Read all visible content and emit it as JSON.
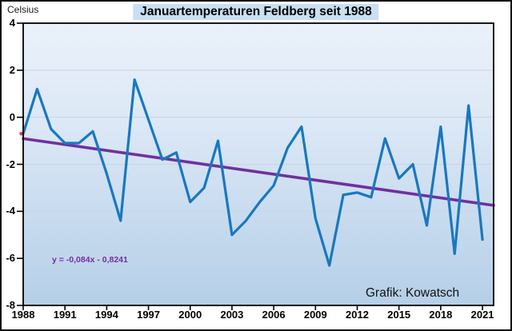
{
  "chart": {
    "unit_label": "Celsius",
    "title": "Januartemperaturen Feldberg seit 1988",
    "credit": "Grafik: Kowatsch",
    "colors": {
      "series_line": "#1878bf",
      "trend_line": "#7030a0",
      "start_marker": "#e03a2f",
      "title_highlight": "#c9dff2",
      "plot_gradient_top": "#eaf1fa",
      "plot_gradient_mid": "#dce8f6",
      "plot_gradient_bottom": "#b5cfe8",
      "gridline": "#ccd5dd",
      "axis": "#000000"
    }
  },
  "chart_data": {
    "type": "line",
    "title": "Januartemperaturen Feldberg seit 1988",
    "ylabel": "Celsius",
    "annotation": "y = -0,084x - 0,8241",
    "credit": "Grafik: Kowatsch",
    "x": [
      1988,
      1989,
      1990,
      1991,
      1992,
      1993,
      1994,
      1995,
      1996,
      1997,
      1998,
      1999,
      2000,
      2001,
      2002,
      2003,
      2004,
      2005,
      2006,
      2007,
      2008,
      2009,
      2010,
      2011,
      2012,
      2013,
      2014,
      2015,
      2016,
      2017,
      2018,
      2019,
      2020,
      2021
    ],
    "values": [
      -0.7,
      1.2,
      -0.5,
      -1.1,
      -1.1,
      -0.6,
      -2.4,
      -4.4,
      1.6,
      -0.1,
      -1.8,
      -1.5,
      -3.6,
      -3.0,
      -1.0,
      -5.0,
      -4.4,
      -3.6,
      -2.9,
      -1.3,
      -0.4,
      -4.3,
      -6.3,
      -3.3,
      -3.2,
      -3.4,
      -0.9,
      -2.6,
      -2.0,
      -4.6,
      -0.4,
      -5.8,
      0.5,
      -5.2
    ],
    "trend": {
      "label": "y = -0,084x - 0,8241",
      "slope": -0.084,
      "intercept": -0.8241,
      "x_index_of_first_year": 1
    },
    "x_ticks": [
      1988,
      1991,
      1994,
      1997,
      2000,
      2003,
      2006,
      2009,
      2012,
      2015,
      2018,
      2021
    ],
    "y_ticks": [
      4,
      2,
      0,
      -2,
      -4,
      -6,
      -8
    ],
    "y_gridlines": [
      2,
      0,
      -2,
      -4,
      -6
    ],
    "ylim": [
      -8,
      4
    ],
    "xlim": [
      1988,
      2021.8
    ],
    "grid": "horizontal",
    "legend": "none"
  }
}
